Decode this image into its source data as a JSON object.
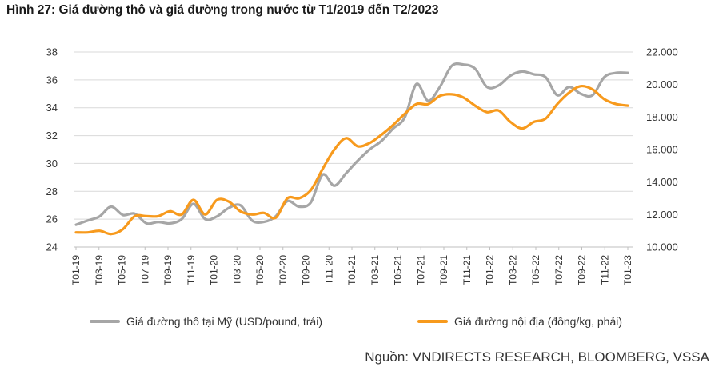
{
  "figure": {
    "title": "Hình 27: Giá đường thô và giá đường trong nước từ T1/2019 đến T2/2023",
    "source": "Nguồn: VNDIRECTS RESEARCH, BLOOMBERG, VSSA"
  },
  "colors": {
    "raw": "#a6a6a6",
    "domestic": "#f79a1d",
    "grid": "#d9d9d9"
  },
  "chart_data": {
    "type": "line",
    "title": "Hình 27: Giá đường thô và giá đường trong nước từ T1/2019 đến T2/2023",
    "x_tick_labels": [
      "T01-19",
      "T03-19",
      "T05-19",
      "T07-19",
      "T09-19",
      "T11-19",
      "T01-20",
      "T03-20",
      "T05-20",
      "T07-20",
      "T09-20",
      "T11-20",
      "T01-21",
      "T03-21",
      "T05-21",
      "T07-21",
      "T09-21",
      "T11-21",
      "T01-22",
      "T03-22",
      "T05-22",
      "T07-22",
      "T09-22",
      "T11-22",
      "T01-23"
    ],
    "y_left": {
      "ylim": [
        24,
        38
      ],
      "ticks": [
        "24",
        "26",
        "28",
        "30",
        "32",
        "34",
        "36",
        "38"
      ]
    },
    "y_right": {
      "ylim": [
        10000,
        22000
      ],
      "ticks": [
        "10.000",
        "12.000",
        "14.000",
        "16.000",
        "18.000",
        "20.000",
        "22.000"
      ]
    },
    "grid": true,
    "legend_position": "bottom",
    "series": [
      {
        "name": "Giá đường thô tại Mỹ (USD/pound, trái)",
        "axis": "left",
        "values": [
          25.6,
          25.9,
          26.2,
          26.9,
          26.3,
          26.4,
          25.7,
          25.8,
          25.7,
          26.0,
          27.1,
          26.0,
          26.2,
          26.8,
          27.0,
          25.9,
          25.8,
          26.2,
          27.3,
          26.9,
          27.2,
          29.2,
          28.4,
          29.3,
          30.2,
          31.0,
          31.6,
          32.5,
          33.3,
          35.7,
          34.5,
          35.5,
          37.0,
          37.1,
          36.8,
          35.5,
          35.6,
          36.3,
          36.6,
          36.4,
          36.2,
          34.9,
          35.5,
          35.0,
          34.9,
          36.2,
          36.5,
          36.5
        ]
      },
      {
        "name": "Giá đường nội địa (đồng/kg, phải)",
        "axis": "right",
        "values": [
          10900,
          10900,
          11000,
          10800,
          11100,
          11900,
          11900,
          11900,
          12200,
          12000,
          12900,
          12000,
          12900,
          12800,
          12200,
          12000,
          12100,
          11800,
          13000,
          13000,
          13500,
          14800,
          16000,
          16700,
          16200,
          16400,
          16900,
          17500,
          18200,
          18800,
          18800,
          19300,
          19400,
          19200,
          18700,
          18300,
          18400,
          17700,
          17300,
          17700,
          17900,
          18800,
          19500,
          19900,
          19700,
          19100,
          18800,
          18700
        ]
      }
    ]
  }
}
